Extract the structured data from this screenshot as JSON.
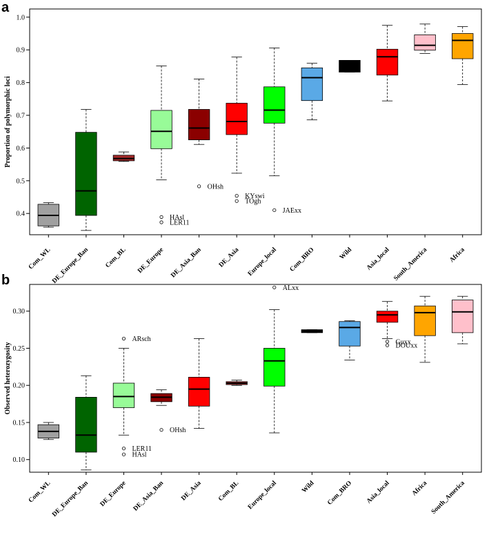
{
  "chart_data": [
    {
      "panel": "a",
      "type": "boxplot",
      "ylabel": "Proportion of polymorphic loci",
      "ylim": [
        0.335,
        1.025
      ],
      "yticks": [
        0.4,
        0.5,
        0.6,
        0.7,
        0.8,
        0.9,
        1.0
      ],
      "ytick_labels": [
        "0.4",
        "0.5",
        "0.6",
        "0.7",
        "0.8",
        "0.9",
        "1.0"
      ],
      "boxes": [
        {
          "category": "Com_WL",
          "color": "#a0a0a0",
          "min": 0.358,
          "q1": 0.362,
          "median": 0.394,
          "q3": 0.428,
          "max": 0.433
        },
        {
          "category": "DE_Europe_Ban",
          "color": "#006400",
          "min": 0.348,
          "q1": 0.394,
          "median": 0.469,
          "q3": 0.648,
          "max": 0.718
        },
        {
          "category": "Com_BL",
          "color": "#a52a2a",
          "min": 0.559,
          "q1": 0.561,
          "median": 0.568,
          "q3": 0.578,
          "max": 0.588
        },
        {
          "category": "DE_Europe",
          "color": "#98fb98",
          "min": 0.503,
          "q1": 0.598,
          "median": 0.651,
          "q3": 0.715,
          "max": 0.851
        },
        {
          "category": "DE_Asia_Ban",
          "color": "#8b0000",
          "min": 0.611,
          "q1": 0.625,
          "median": 0.661,
          "q3": 0.718,
          "max": 0.811
        },
        {
          "category": "DE_Asia",
          "color": "#ff0000",
          "min": 0.523,
          "q1": 0.641,
          "median": 0.681,
          "q3": 0.737,
          "max": 0.878
        },
        {
          "category": "Europe_local",
          "color": "#00ff00",
          "min": 0.515,
          "q1": 0.676,
          "median": 0.716,
          "q3": 0.787,
          "max": 0.906
        },
        {
          "category": "Com_BRO",
          "color": "#5aa9e6",
          "min": 0.686,
          "q1": 0.745,
          "median": 0.815,
          "q3": 0.845,
          "max": 0.859
        },
        {
          "category": "Wild",
          "color": "#000000",
          "min": 0.832,
          "q1": 0.832,
          "median": 0.85,
          "q3": 0.868,
          "max": 0.868
        },
        {
          "category": "Asia_local",
          "color": "#ff0000",
          "min": 0.744,
          "q1": 0.823,
          "median": 0.879,
          "q3": 0.902,
          "max": 0.975
        },
        {
          "category": "South_America",
          "color": "#ffc0cb",
          "min": 0.889,
          "q1": 0.899,
          "median": 0.914,
          "q3": 0.946,
          "max": 0.979
        },
        {
          "category": "Africa",
          "color": "#ffa500",
          "min": 0.794,
          "q1": 0.873,
          "median": 0.929,
          "q3": 0.95,
          "max": 0.971
        }
      ],
      "outliers": [
        {
          "category": "DE_Europe",
          "value": 0.389,
          "label": "HAsl"
        },
        {
          "category": "DE_Europe",
          "value": 0.373,
          "label": "LER11"
        },
        {
          "category": "DE_Asia_Ban",
          "value": 0.483,
          "label": "OHsh"
        },
        {
          "category": "DE_Asia",
          "value": 0.454,
          "label": "KYswi"
        },
        {
          "category": "DE_Asia",
          "value": 0.438,
          "label": "TOgh"
        },
        {
          "category": "Europe_local",
          "value": 0.41,
          "label": "JAExx"
        }
      ]
    },
    {
      "panel": "b",
      "type": "boxplot",
      "ylabel": "Observed heterozygosity",
      "ylim": [
        0.083,
        0.336
      ],
      "yticks": [
        0.1,
        0.15,
        0.2,
        0.25,
        0.3
      ],
      "ytick_labels": [
        "0.10",
        "0.15",
        "0.20",
        "0.25",
        "0.30"
      ],
      "boxes": [
        {
          "category": "Com_WL",
          "color": "#a0a0a0",
          "min": 0.127,
          "q1": 0.129,
          "median": 0.138,
          "q3": 0.147,
          "max": 0.15
        },
        {
          "category": "DE_Europe_Ban",
          "color": "#006400",
          "min": 0.086,
          "q1": 0.11,
          "median": 0.133,
          "q3": 0.184,
          "max": 0.213
        },
        {
          "category": "DE_Europe",
          "color": "#98fb98",
          "min": 0.133,
          "q1": 0.17,
          "median": 0.185,
          "q3": 0.203,
          "max": 0.25
        },
        {
          "category": "DE_Asia_Ban",
          "color": "#8b0000",
          "min": 0.173,
          "q1": 0.178,
          "median": 0.184,
          "q3": 0.189,
          "max": 0.194
        },
        {
          "category": "DE_Asia",
          "color": "#ff0000",
          "min": 0.142,
          "q1": 0.172,
          "median": 0.195,
          "q3": 0.211,
          "max": 0.263
        },
        {
          "category": "Com_BL",
          "color": "#a52a2a",
          "min": 0.2,
          "q1": 0.201,
          "median": 0.203,
          "q3": 0.205,
          "max": 0.207
        },
        {
          "category": "Europe_local",
          "color": "#00ff00",
          "min": 0.136,
          "q1": 0.199,
          "median": 0.233,
          "q3": 0.25,
          "max": 0.302
        },
        {
          "category": "Wild",
          "color": "#000000",
          "min": 0.271,
          "q1": 0.271,
          "median": 0.273,
          "q3": 0.275,
          "max": 0.275
        },
        {
          "category": "Com_BRO",
          "color": "#5aa9e6",
          "min": 0.234,
          "q1": 0.253,
          "median": 0.278,
          "q3": 0.286,
          "max": 0.287
        },
        {
          "category": "Asia_local",
          "color": "#ff0000",
          "min": 0.263,
          "q1": 0.285,
          "median": 0.295,
          "q3": 0.3,
          "max": 0.313
        },
        {
          "category": "Africa",
          "color": "#ffa500",
          "min": 0.231,
          "q1": 0.267,
          "median": 0.298,
          "q3": 0.307,
          "max": 0.32
        },
        {
          "category": "South_America",
          "color": "#ffc0cb",
          "min": 0.256,
          "q1": 0.271,
          "median": 0.299,
          "q3": 0.315,
          "max": 0.32
        }
      ],
      "outliers": [
        {
          "category": "DE_Europe",
          "value": 0.263,
          "label": "ARsch"
        },
        {
          "category": "DE_Europe",
          "value": 0.115,
          "label": "LER11"
        },
        {
          "category": "DE_Europe",
          "value": 0.107,
          "label": "HAsl"
        },
        {
          "category": "DE_Asia_Ban",
          "value": 0.14,
          "label": "OHsh"
        },
        {
          "category": "Europe_local",
          "value": 0.332,
          "label": "ALxx"
        },
        {
          "category": "Asia_local",
          "value": 0.259,
          "label": "Guxx"
        },
        {
          "category": "Asia_local",
          "value": 0.254,
          "label": "DOUxx"
        }
      ]
    }
  ]
}
